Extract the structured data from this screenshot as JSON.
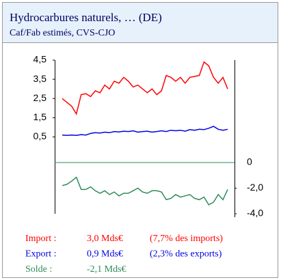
{
  "chart_data": {
    "type": "line",
    "title": "Hydrocarbures naturels, … (DE)",
    "subtitle": "Caf/Fab estimés, CVS-CJO",
    "ylim": [
      -3.5,
      4.5
    ],
    "yticks": [
      {
        "value": 0.5,
        "label": "0,5"
      },
      {
        "value": 1.5,
        "label": "1,5"
      },
      {
        "value": 2.5,
        "label": "2,5"
      },
      {
        "value": 3.5,
        "label": "3,5"
      },
      {
        "value": 4.5,
        "label": "4,5"
      }
    ],
    "y2lim": [
      -4,
      8
    ],
    "y2ticks": [
      0,
      {
        "value": -2.0,
        "label": "-2,0"
      },
      {
        "value": -4.0,
        "label": "-4,0"
      }
    ],
    "series": [
      {
        "name": "Import :",
        "color": "#ff0000",
        "total_label": "3,0 Mds€",
        "share_label": "(7,7% des imports)",
        "values": [
          2.5,
          2.3,
          2.1,
          1.7,
          2.7,
          2.75,
          2.6,
          2.9,
          2.8,
          3.2,
          3.0,
          3.4,
          3.3,
          3.6,
          3.4,
          3.1,
          3.2,
          3.0,
          2.8,
          3.0,
          2.7,
          2.9,
          3.7,
          3.6,
          3.4,
          3.6,
          3.3,
          3.6,
          3.65,
          3.7,
          4.4,
          4.2,
          3.6,
          3.3,
          3.6,
          3.0
        ]
      },
      {
        "name": "Export :",
        "color": "#0000e0",
        "total_label": "0,9 Mds€",
        "share_label": "(2,3% des exports)",
        "values": [
          0.6,
          0.58,
          0.6,
          0.58,
          0.62,
          0.6,
          0.68,
          0.72,
          0.7,
          0.75,
          0.72,
          0.78,
          0.76,
          0.8,
          0.78,
          0.82,
          0.75,
          0.78,
          0.8,
          0.75,
          0.78,
          0.82,
          0.78,
          0.85,
          0.82,
          0.85,
          0.8,
          0.88,
          0.85,
          0.9,
          0.88,
          0.95,
          1.05,
          0.9,
          0.85,
          0.9
        ]
      },
      {
        "name": "Solde :",
        "color": "#2e8b57",
        "axis": "y2",
        "total_label": "-2,1 Mds€",
        "values": [
          -1.8,
          -1.7,
          -1.45,
          -1.15,
          -2.1,
          -2.1,
          -1.9,
          -2.2,
          -2.4,
          -2.2,
          -2.5,
          -2.3,
          -2.6,
          -2.4,
          -2.4,
          -2.2,
          -2.0,
          -2.3,
          -2.4,
          -2.2,
          -2.2,
          -2.3,
          -2.9,
          -2.8,
          -2.5,
          -2.7,
          -2.6,
          -2.5,
          -2.8,
          -2.9,
          -2.7,
          -3.3,
          -3.1,
          -2.5,
          -2.9,
          -2.1
        ]
      }
    ]
  }
}
